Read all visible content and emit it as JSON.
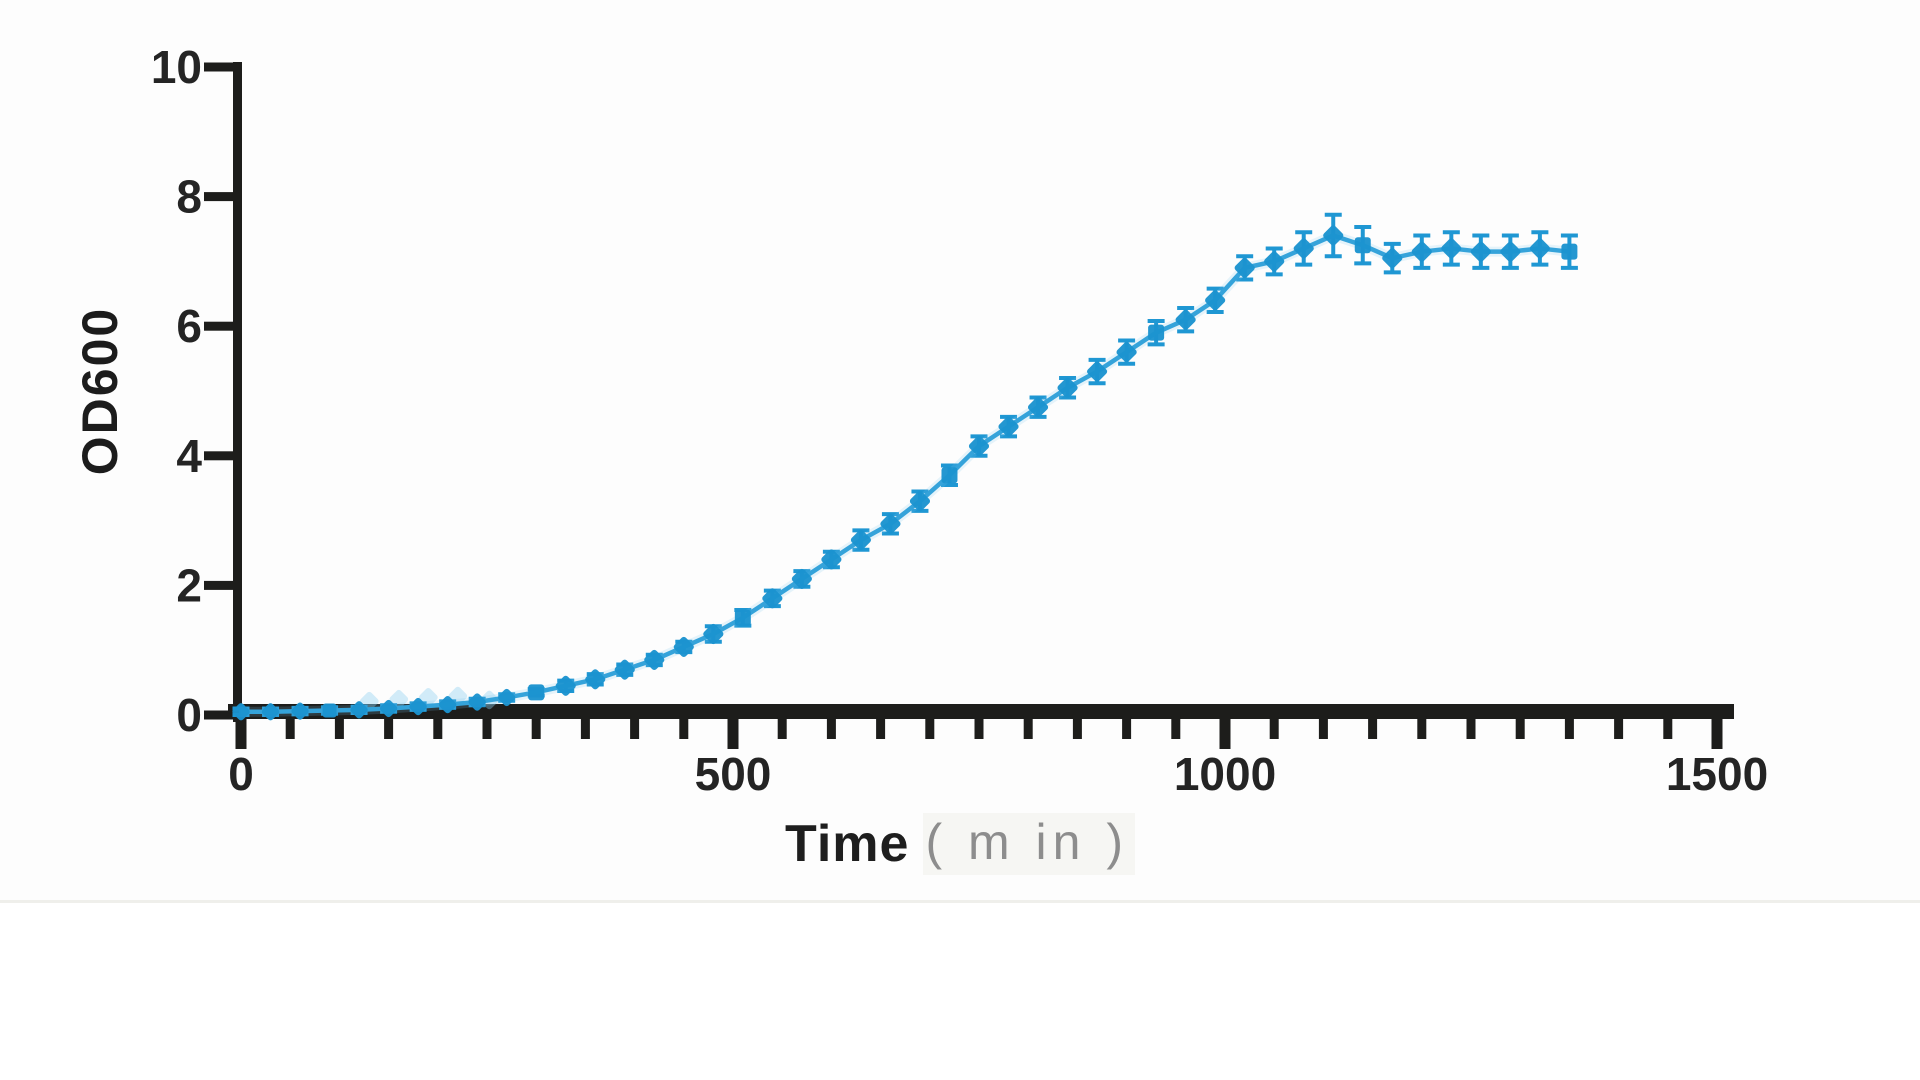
{
  "figure": {
    "ylabel": "OD600",
    "xlabel_main": "Time",
    "xlabel_unit": "( m in )"
  },
  "chart_data": {
    "type": "line",
    "title": "",
    "xlabel": "Time (min)",
    "ylabel": "OD600",
    "xlim": [
      0,
      1500
    ],
    "ylim": [
      0,
      10
    ],
    "x_major_ticks": [
      0,
      500,
      1000,
      1500
    ],
    "x_minor_tick_step": 50,
    "y_ticks": [
      0,
      2,
      4,
      6,
      8,
      10
    ],
    "grid": false,
    "legend_position": "none",
    "x": [
      0,
      30,
      60,
      90,
      120,
      150,
      180,
      210,
      240,
      270,
      300,
      330,
      360,
      390,
      420,
      450,
      480,
      510,
      540,
      570,
      600,
      630,
      660,
      690,
      720,
      750,
      780,
      810,
      840,
      870,
      900,
      930,
      960,
      990,
      1020,
      1050,
      1080,
      1110,
      1140,
      1170,
      1200,
      1230,
      1260,
      1290,
      1320,
      1350
    ],
    "series": [
      {
        "name": "OD600",
        "marker": "diamond",
        "color": "#1b93cf",
        "values": [
          0.05,
          0.05,
          0.06,
          0.07,
          0.08,
          0.1,
          0.13,
          0.16,
          0.2,
          0.27,
          0.35,
          0.45,
          0.55,
          0.7,
          0.85,
          1.05,
          1.25,
          1.5,
          1.8,
          2.1,
          2.4,
          2.7,
          2.95,
          3.3,
          3.7,
          4.15,
          4.45,
          4.75,
          5.05,
          5.3,
          5.6,
          5.9,
          6.1,
          6.4,
          6.9,
          7.0,
          7.2,
          7.4,
          7.25,
          7.05,
          7.15,
          7.2,
          7.15,
          7.15,
          7.2,
          7.15
        ],
        "errors": [
          0.05,
          0.05,
          0.05,
          0.05,
          0.05,
          0.05,
          0.05,
          0.05,
          0.05,
          0.05,
          0.05,
          0.08,
          0.08,
          0.08,
          0.08,
          0.08,
          0.12,
          0.12,
          0.12,
          0.12,
          0.12,
          0.15,
          0.15,
          0.15,
          0.15,
          0.15,
          0.15,
          0.15,
          0.15,
          0.18,
          0.18,
          0.18,
          0.18,
          0.18,
          0.18,
          0.2,
          0.25,
          0.32,
          0.28,
          0.22,
          0.25,
          0.25,
          0.25,
          0.25,
          0.25,
          0.25
        ]
      }
    ]
  },
  "colors": {
    "marker": "#1b93cf",
    "line": "#35a3da",
    "line_halo": "#7cc7ec",
    "error_bar": "#1f97d3",
    "ghost_marker": "#8fd0ef",
    "axis": "#1d1d1b",
    "tick_label": "#242424",
    "unit_text": "#8d8d8d"
  }
}
